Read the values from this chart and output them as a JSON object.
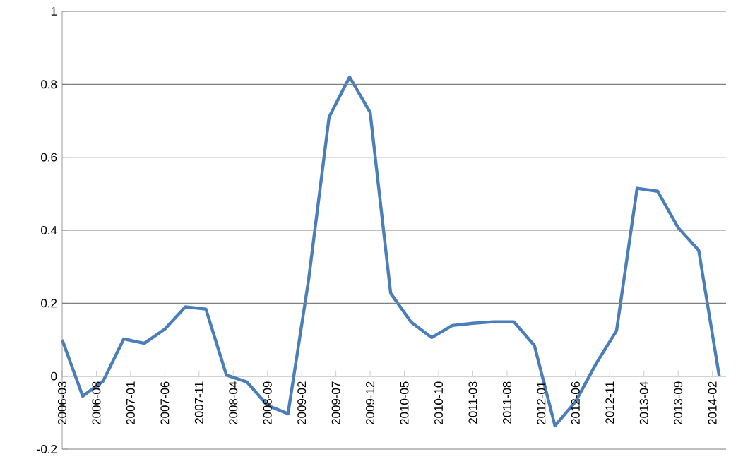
{
  "chart_data": {
    "type": "line",
    "x": [
      "2006-03",
      "2006-06",
      "2006-09",
      "2006-12",
      "2007-03",
      "2007-06",
      "2007-09",
      "2007-12",
      "2008-03",
      "2008-06",
      "2008-09",
      "2008-12",
      "2009-03",
      "2009-06",
      "2009-09",
      "2009-12",
      "2010-03",
      "2010-06",
      "2010-09",
      "2010-12",
      "2011-03",
      "2011-06",
      "2011-09",
      "2011-12",
      "2012-03",
      "2012-06",
      "2012-09",
      "2012-12",
      "2013-03",
      "2013-06",
      "2013-09",
      "2013-12",
      "2014-03"
    ],
    "series": [
      {
        "color": "#4a7ebb",
        "values": [
          0.1,
          -0.055,
          -0.013,
          0.102,
          0.09,
          0.129,
          0.19,
          0.184,
          0.003,
          -0.016,
          -0.08,
          -0.103,
          0.263,
          0.71,
          0.82,
          0.723,
          0.227,
          0.148,
          0.106,
          0.139,
          0.145,
          0.149,
          0.149,
          0.084,
          -0.136,
          -0.07,
          0.034,
          0.125,
          0.515,
          0.507,
          0.407,
          0.345,
          0
        ]
      }
    ],
    "xlim": [
      "2006-03",
      "2014-04"
    ],
    "xticks": [
      "2006-03",
      "2006-08",
      "2007-01",
      "2007-06",
      "2007-11",
      "2008-04",
      "2008-09",
      "2009-02",
      "2009-07",
      "2009-12",
      "2010-05",
      "2010-10",
      "2011-03",
      "2011-08",
      "2012-01",
      "2012-06",
      "2012-11",
      "2013-04",
      "2013-09",
      "2014-02"
    ],
    "ylim": [
      -0.2,
      1
    ],
    "yticks": [
      -0.2,
      0,
      0.2,
      0.4,
      0.6,
      0.8,
      1
    ],
    "grid": "y"
  }
}
